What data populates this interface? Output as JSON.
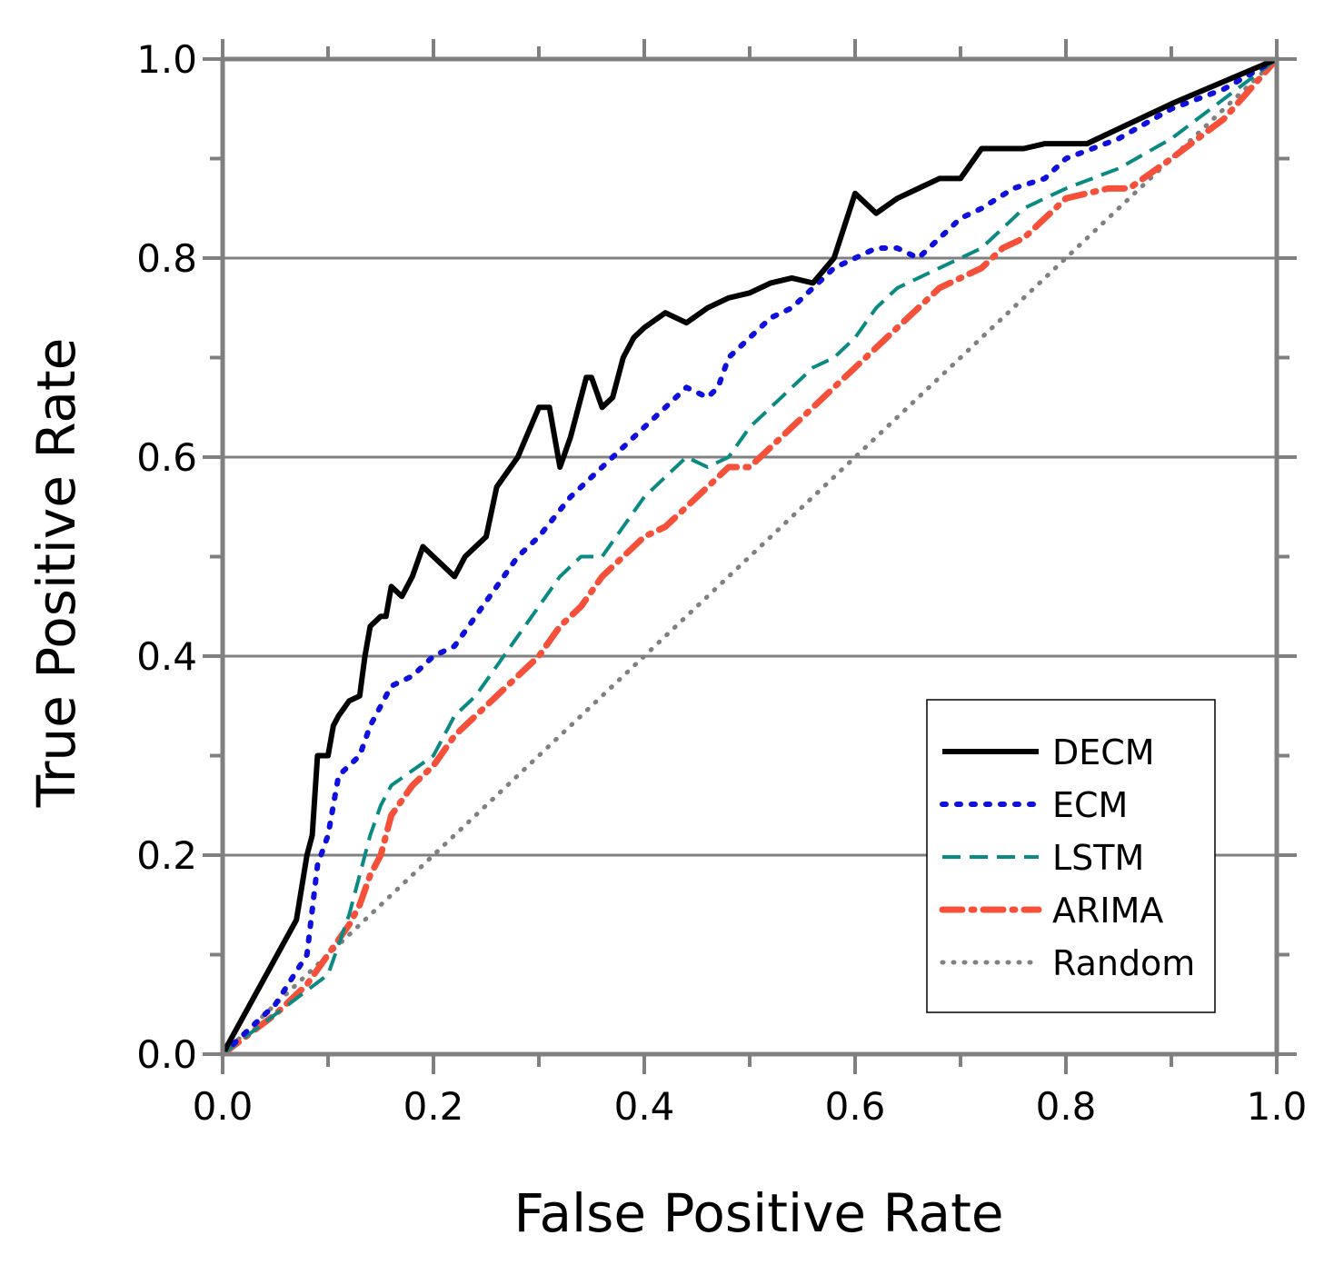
{
  "chart_data": {
    "type": "line",
    "title": "",
    "xlabel": "False Positive Rate",
    "ylabel": "True Positive Rate",
    "xlim": [
      0.0,
      1.0
    ],
    "ylim": [
      0.0,
      1.0
    ],
    "xticks": [
      "0.0",
      "0.2",
      "0.4",
      "0.6",
      "0.8",
      "1.0"
    ],
    "yticks": [
      "0.0",
      "0.2",
      "0.4",
      "0.6",
      "0.8",
      "1.0"
    ],
    "grid": "horizontal at 0.2, 0.4, 0.6, 0.8",
    "legend_position": "bottom-right",
    "series": [
      {
        "name": "DECM",
        "color": "#000000",
        "style": "solid",
        "x": [
          0.0,
          0.07,
          0.08,
          0.085,
          0.09,
          0.1,
          0.105,
          0.11,
          0.12,
          0.13,
          0.135,
          0.14,
          0.15,
          0.155,
          0.16,
          0.17,
          0.18,
          0.19,
          0.2,
          0.21,
          0.22,
          0.23,
          0.25,
          0.26,
          0.28,
          0.3,
          0.31,
          0.32,
          0.33,
          0.345,
          0.35,
          0.36,
          0.37,
          0.38,
          0.39,
          0.4,
          0.42,
          0.44,
          0.46,
          0.48,
          0.5,
          0.52,
          0.54,
          0.56,
          0.58,
          0.6,
          0.62,
          0.64,
          0.66,
          0.68,
          0.7,
          0.72,
          0.74,
          0.76,
          0.78,
          0.8,
          0.82,
          0.9,
          1.0
        ],
        "y": [
          0.0,
          0.135,
          0.2,
          0.22,
          0.3,
          0.3,
          0.33,
          0.34,
          0.355,
          0.36,
          0.4,
          0.43,
          0.44,
          0.44,
          0.47,
          0.46,
          0.48,
          0.51,
          0.5,
          0.49,
          0.48,
          0.5,
          0.52,
          0.57,
          0.6,
          0.65,
          0.65,
          0.59,
          0.62,
          0.68,
          0.68,
          0.65,
          0.66,
          0.7,
          0.72,
          0.73,
          0.745,
          0.735,
          0.75,
          0.76,
          0.765,
          0.775,
          0.78,
          0.775,
          0.8,
          0.865,
          0.845,
          0.86,
          0.87,
          0.88,
          0.88,
          0.91,
          0.91,
          0.91,
          0.915,
          0.915,
          0.915,
          0.955,
          1.0
        ]
      },
      {
        "name": "ECM",
        "color": "#1010dd",
        "style": "dotted",
        "x": [
          0.0,
          0.05,
          0.08,
          0.09,
          0.1,
          0.11,
          0.12,
          0.13,
          0.14,
          0.15,
          0.16,
          0.18,
          0.2,
          0.22,
          0.24,
          0.26,
          0.28,
          0.3,
          0.33,
          0.36,
          0.38,
          0.4,
          0.42,
          0.44,
          0.46,
          0.47,
          0.48,
          0.5,
          0.52,
          0.54,
          0.56,
          0.58,
          0.6,
          0.62,
          0.64,
          0.66,
          0.68,
          0.7,
          0.72,
          0.75,
          0.78,
          0.8,
          0.85,
          0.9,
          0.95,
          1.0
        ],
        "y": [
          0.0,
          0.05,
          0.1,
          0.19,
          0.22,
          0.28,
          0.29,
          0.3,
          0.33,
          0.35,
          0.37,
          0.38,
          0.4,
          0.41,
          0.44,
          0.47,
          0.5,
          0.52,
          0.56,
          0.59,
          0.61,
          0.63,
          0.65,
          0.67,
          0.66,
          0.67,
          0.7,
          0.72,
          0.74,
          0.75,
          0.77,
          0.79,
          0.8,
          0.81,
          0.81,
          0.8,
          0.82,
          0.84,
          0.85,
          0.87,
          0.88,
          0.9,
          0.92,
          0.95,
          0.97,
          1.0
        ]
      },
      {
        "name": "LSTM",
        "color": "#0a8a82",
        "style": "dashed",
        "x": [
          0.0,
          0.05,
          0.1,
          0.12,
          0.13,
          0.14,
          0.15,
          0.16,
          0.18,
          0.2,
          0.22,
          0.24,
          0.26,
          0.28,
          0.3,
          0.32,
          0.34,
          0.36,
          0.38,
          0.4,
          0.42,
          0.44,
          0.46,
          0.48,
          0.5,
          0.52,
          0.54,
          0.56,
          0.58,
          0.6,
          0.62,
          0.64,
          0.66,
          0.68,
          0.7,
          0.72,
          0.74,
          0.76,
          0.78,
          0.8,
          0.85,
          0.9,
          0.95,
          1.0
        ],
        "y": [
          0.0,
          0.04,
          0.08,
          0.14,
          0.18,
          0.22,
          0.25,
          0.27,
          0.285,
          0.3,
          0.34,
          0.36,
          0.39,
          0.42,
          0.45,
          0.48,
          0.5,
          0.5,
          0.53,
          0.56,
          0.58,
          0.6,
          0.59,
          0.6,
          0.63,
          0.65,
          0.67,
          0.69,
          0.7,
          0.72,
          0.75,
          0.77,
          0.78,
          0.79,
          0.8,
          0.81,
          0.83,
          0.85,
          0.86,
          0.87,
          0.89,
          0.92,
          0.96,
          1.0
        ]
      },
      {
        "name": "ARIMA",
        "color": "#f5503a",
        "style": "dash-dot",
        "x": [
          0.0,
          0.05,
          0.08,
          0.1,
          0.12,
          0.13,
          0.14,
          0.15,
          0.16,
          0.18,
          0.2,
          0.22,
          0.24,
          0.26,
          0.28,
          0.3,
          0.32,
          0.34,
          0.36,
          0.38,
          0.4,
          0.42,
          0.44,
          0.46,
          0.48,
          0.5,
          0.52,
          0.54,
          0.56,
          0.58,
          0.6,
          0.62,
          0.64,
          0.66,
          0.68,
          0.7,
          0.72,
          0.74,
          0.76,
          0.78,
          0.8,
          0.84,
          0.86,
          0.9,
          0.95,
          1.0
        ],
        "y": [
          0.0,
          0.04,
          0.07,
          0.1,
          0.13,
          0.15,
          0.18,
          0.2,
          0.24,
          0.27,
          0.29,
          0.32,
          0.34,
          0.36,
          0.38,
          0.4,
          0.43,
          0.45,
          0.48,
          0.5,
          0.52,
          0.53,
          0.55,
          0.57,
          0.59,
          0.59,
          0.61,
          0.63,
          0.65,
          0.67,
          0.69,
          0.71,
          0.73,
          0.75,
          0.77,
          0.78,
          0.79,
          0.81,
          0.82,
          0.84,
          0.86,
          0.87,
          0.87,
          0.9,
          0.94,
          1.0
        ]
      },
      {
        "name": "Random",
        "color": "#808080",
        "style": "dotted-gray",
        "x": [
          0.0,
          1.0
        ],
        "y": [
          0.0,
          1.0
        ]
      }
    ]
  }
}
